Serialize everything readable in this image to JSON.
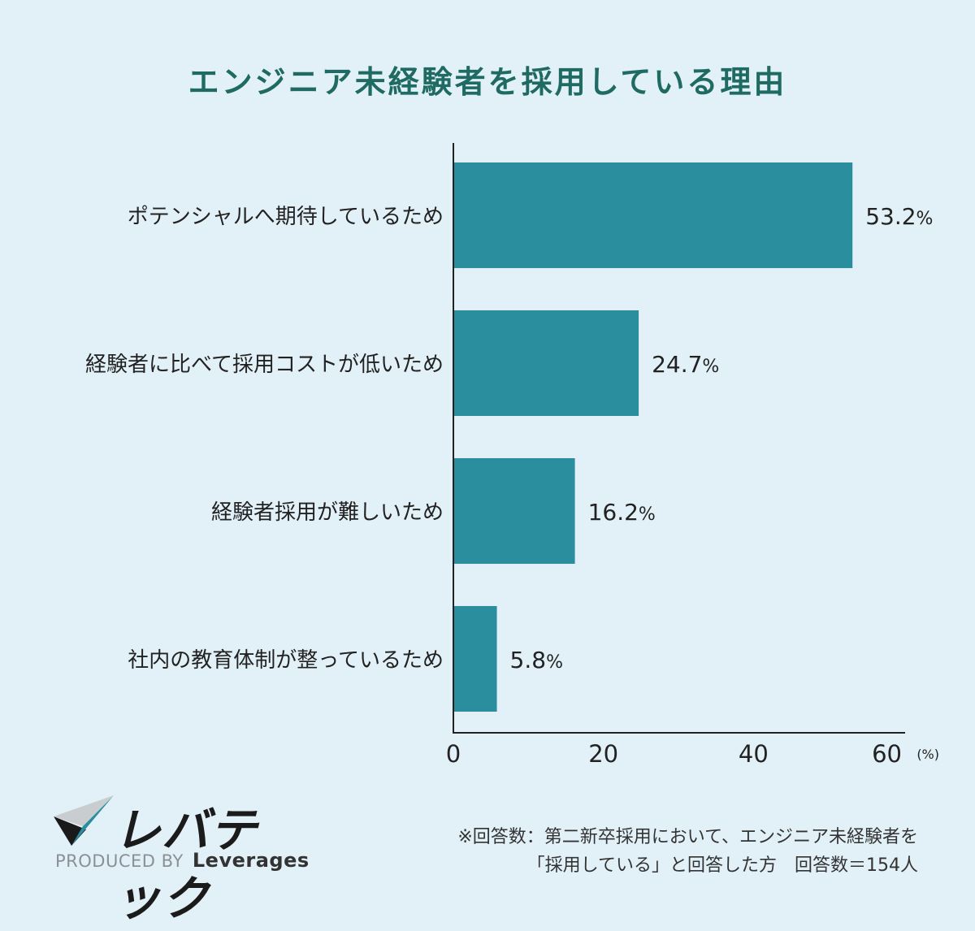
{
  "title": "エンジニア未経験者を採用している理由",
  "chart_data": {
    "type": "bar",
    "orientation": "horizontal",
    "title": "エンジニア未経験者を採用している理由",
    "categories": [
      "ポテンシャルへ期待しているため",
      "経験者に比べて採用コストが低いため",
      "経験者採用が難しいため",
      "社内の教育体制が整っているため"
    ],
    "values": [
      53.2,
      24.7,
      16.2,
      5.8
    ],
    "value_labels": [
      "53.2",
      "24.7",
      "16.2",
      "5.8"
    ],
    "value_unit": "%",
    "xlim": [
      0,
      60
    ],
    "x_ticks": [
      "0",
      "20",
      "40",
      "60"
    ],
    "x_unit": "(%)",
    "bar_color": "#2a8e9e",
    "grid": false
  },
  "logo": {
    "name": "レバテック",
    "produced_by": "PRODUCED BY",
    "brand": "Leverages"
  },
  "note": {
    "line1": "※回答数：第二新卒採用において、エンジニア未経験者を",
    "line2": "「採用している」と回答した方　回答数＝154人"
  }
}
